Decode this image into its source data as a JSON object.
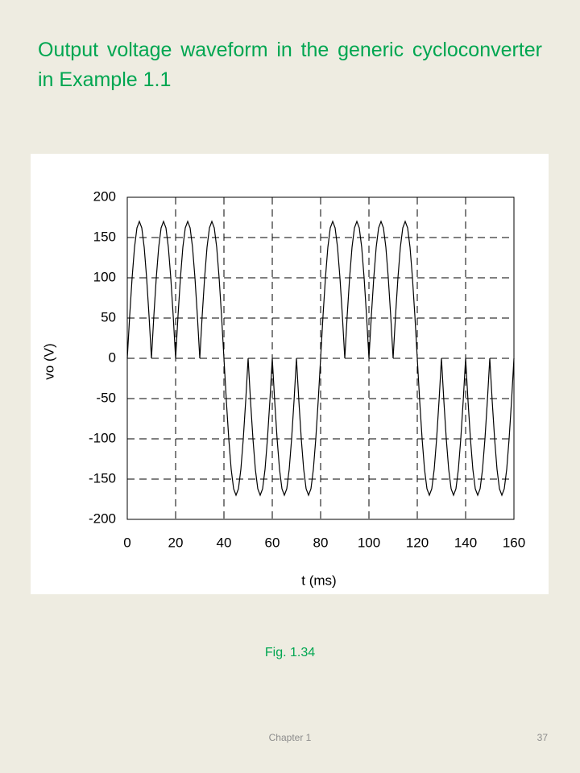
{
  "slide_title": "Output voltage waveform in the generic cycloconverter in Example 1.1",
  "chart_data": {
    "type": "line",
    "x_label": "t (ms)",
    "y_label": "vo (V)",
    "color": "#000000",
    "grid": true,
    "xlim": [
      0,
      160
    ],
    "ylim": [
      -200,
      200
    ],
    "xticks": [
      0,
      20,
      40,
      60,
      80,
      100,
      120,
      140,
      160
    ],
    "yticks": [
      -200,
      -150,
      -100,
      -50,
      0,
      50,
      100,
      150,
      200
    ],
    "x": [
      0,
      1,
      2,
      3,
      4,
      5,
      6,
      7,
      8,
      9,
      10,
      11,
      12,
      13,
      14,
      15,
      16,
      17,
      18,
      19,
      20,
      21,
      22,
      23,
      24,
      25,
      26,
      27,
      28,
      29,
      30,
      31,
      32,
      33,
      34,
      35,
      36,
      37,
      38,
      39,
      40,
      41,
      42,
      43,
      44,
      45,
      46,
      47,
      48,
      49,
      50,
      51,
      52,
      53,
      54,
      55,
      56,
      57,
      58,
      59,
      60,
      61,
      62,
      63,
      64,
      65,
      66,
      67,
      68,
      69,
      70,
      71,
      72,
      73,
      74,
      75,
      76,
      77,
      78,
      79,
      80,
      81,
      82,
      83,
      84,
      85,
      86,
      87,
      88,
      89,
      90,
      91,
      92,
      93,
      94,
      95,
      96,
      97,
      98,
      99,
      100,
      101,
      102,
      103,
      104,
      105,
      106,
      107,
      108,
      109,
      110,
      111,
      112,
      113,
      114,
      115,
      116,
      117,
      118,
      119,
      120,
      121,
      122,
      123,
      124,
      125,
      126,
      127,
      128,
      129,
      130,
      131,
      132,
      133,
      134,
      135,
      136,
      137,
      138,
      139,
      140,
      141,
      142,
      143,
      144,
      145,
      146,
      147,
      148,
      149,
      150,
      151,
      152,
      153,
      154,
      155,
      156,
      157,
      158,
      159,
      160
    ],
    "values": [
      0,
      53,
      100,
      138,
      162,
      170,
      162,
      138,
      100,
      53,
      0,
      53,
      100,
      138,
      162,
      170,
      162,
      138,
      100,
      53,
      0,
      53,
      100,
      138,
      162,
      170,
      162,
      138,
      100,
      53,
      0,
      53,
      100,
      138,
      162,
      170,
      162,
      138,
      100,
      53,
      0,
      -53,
      -100,
      -138,
      -162,
      -170,
      -162,
      -138,
      -100,
      -53,
      0,
      -53,
      -100,
      -138,
      -162,
      -170,
      -162,
      -138,
      -100,
      -53,
      0,
      -53,
      -100,
      -138,
      -162,
      -170,
      -162,
      -138,
      -100,
      -53,
      0,
      -53,
      -100,
      -138,
      -162,
      -170,
      -162,
      -138,
      -100,
      -53,
      0,
      53,
      100,
      138,
      162,
      170,
      162,
      138,
      100,
      53,
      0,
      53,
      100,
      138,
      162,
      170,
      162,
      138,
      100,
      53,
      0,
      53,
      100,
      138,
      162,
      170,
      162,
      138,
      100,
      53,
      0,
      53,
      100,
      138,
      162,
      170,
      162,
      138,
      100,
      53,
      0,
      -53,
      -100,
      -138,
      -162,
      -170,
      -162,
      -138,
      -100,
      -53,
      0,
      -53,
      -100,
      -138,
      -162,
      -170,
      -162,
      -138,
      -100,
      -53,
      0,
      -53,
      -100,
      -138,
      -162,
      -170,
      -162,
      -138,
      -100,
      -53,
      0,
      -53,
      -100,
      -138,
      -162,
      -170,
      -162,
      -138,
      -100,
      -53,
      0
    ]
  },
  "caption": "Fig. 1.34",
  "footer": {
    "chapter": "Chapter 1",
    "page": "37"
  }
}
